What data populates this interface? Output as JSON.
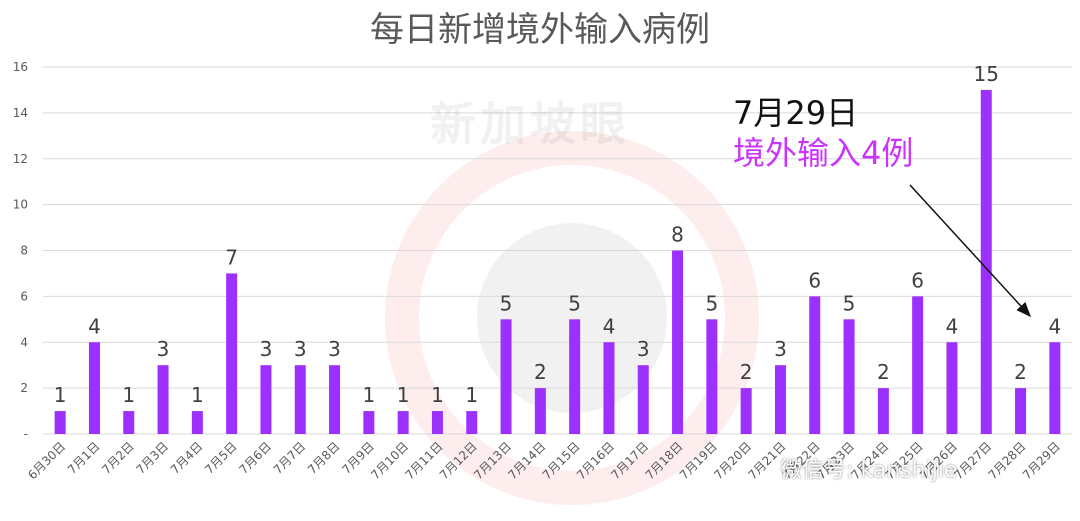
{
  "chart_data": {
    "type": "bar",
    "title": "每日新增境外输入病例",
    "categories": [
      "6月30日",
      "7月1日",
      "7月2日",
      "7月3日",
      "7月4日",
      "7月5日",
      "7月6日",
      "7月7日",
      "7月8日",
      "7月9日",
      "7月10日",
      "7月11日",
      "7月12日",
      "7月13日",
      "7月14日",
      "7月15日",
      "7月16日",
      "7月17日",
      "7月18日",
      "7月19日",
      "7月20日",
      "7月21日",
      "7月22日",
      "7月23日",
      "7月24日",
      "7月25日",
      "7月26日",
      "7月27日",
      "7月28日",
      "7月29日"
    ],
    "values": [
      1,
      4,
      1,
      3,
      1,
      7,
      3,
      3,
      3,
      1,
      1,
      1,
      1,
      5,
      2,
      5,
      4,
      3,
      8,
      5,
      2,
      3,
      6,
      5,
      2,
      6,
      4,
      15,
      2,
      4
    ],
    "ylim": [
      0,
      16
    ],
    "yticks": [
      "-",
      "2",
      "4",
      "6",
      "8",
      "10",
      "12",
      "14",
      "16"
    ],
    "grid": true,
    "bar_color": "#9B30FF",
    "annotation": {
      "date": "7月29日",
      "text": "境外输入4例",
      "color": "#CC33FF"
    }
  },
  "watermark": {
    "brand": "新加坡眼",
    "credit": "微信号: kanshijie"
  }
}
